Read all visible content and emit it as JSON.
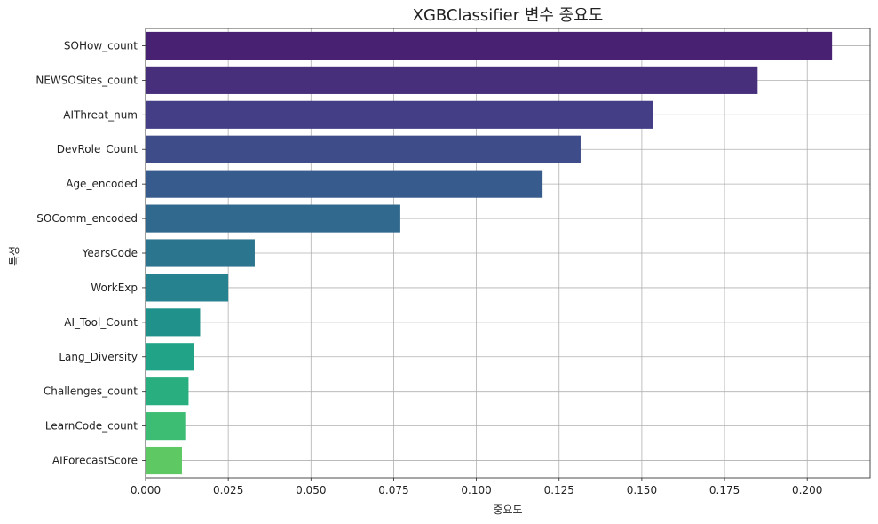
{
  "chart_data": {
    "type": "bar",
    "orientation": "horizontal",
    "title": "XGBClassifier 변수 중요도",
    "xlabel": "중요도",
    "ylabel": "특성",
    "xlim": [
      0,
      0.219
    ],
    "xticks": [
      0.0,
      0.025,
      0.05,
      0.075,
      0.1,
      0.125,
      0.15,
      0.175,
      0.2
    ],
    "xtick_labels": [
      "0.000",
      "0.025",
      "0.050",
      "0.075",
      "0.100",
      "0.125",
      "0.150",
      "0.175",
      "0.200"
    ],
    "grid": true,
    "palette": "viridis",
    "bars": [
      {
        "label": "SOHow_count",
        "value": 0.2075,
        "color": "#482173"
      },
      {
        "label": "NEWSOSites_count",
        "value": 0.185,
        "color": "#482f7c"
      },
      {
        "label": "AIThreat_num",
        "value": 0.1535,
        "color": "#433e85"
      },
      {
        "label": "DevRole_Count",
        "value": 0.1315,
        "color": "#3e4d89"
      },
      {
        "label": "Age_encoded",
        "value": 0.12,
        "color": "#375b8d"
      },
      {
        "label": "SOComm_encoded",
        "value": 0.077,
        "color": "#31688e"
      },
      {
        "label": "YearsCode",
        "value": 0.033,
        "color": "#2c758e"
      },
      {
        "label": "WorkExp",
        "value": 0.025,
        "color": "#26828e"
      },
      {
        "label": "AI_Tool_Count",
        "value": 0.0165,
        "color": "#21918c"
      },
      {
        "label": "Lang_Diversity",
        "value": 0.0145,
        "color": "#20a386"
      },
      {
        "label": "Challenges_count",
        "value": 0.013,
        "color": "#29af7f"
      },
      {
        "label": "LearnCode_count",
        "value": 0.012,
        "color": "#3dbc74"
      },
      {
        "label": "AIForecastScore",
        "value": 0.011,
        "color": "#5ec962"
      }
    ]
  }
}
